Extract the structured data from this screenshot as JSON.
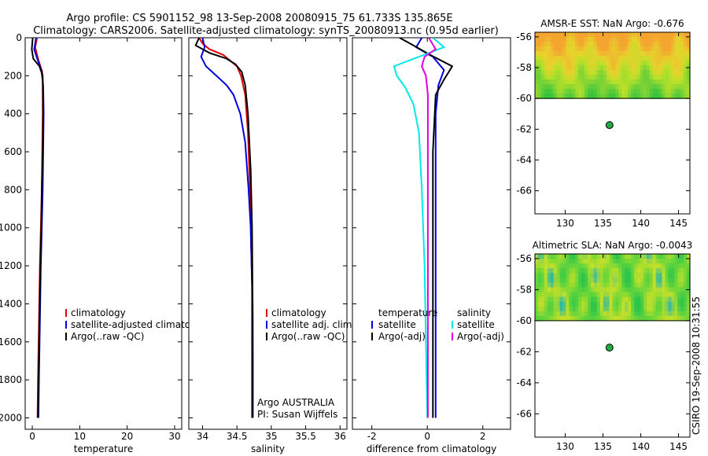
{
  "header": {
    "line1": "Argo profile: CS 5901152_98 13-Sep-2008 20080915_75 61.733S 135.865E",
    "line2": "Climatology: CARS2006. Satellite-adjusted climatology: synTS_20080913.nc (0.95d earlier)"
  },
  "side_stamp": "CSIRO 19-Sep-2008 10:31:55",
  "colors": {
    "climatology": "#e00000",
    "satellite": "#0000dd",
    "argo": "#000000",
    "sal_satellite": "#00e8e8",
    "sal_argo": "#e000e0",
    "sat_map_land_mask": "#ffffff",
    "map_marker": "#22aa44"
  },
  "chart_data": [
    {
      "id": "temperature",
      "type": "line",
      "xlabel": "temperature",
      "ylabel": "",
      "xlim": [
        -1.5,
        31.5
      ],
      "ylim": [
        0,
        2060
      ],
      "y_inverted": true,
      "xticks": [
        "0",
        "10",
        "20",
        "30"
      ],
      "xtick_values": [
        0,
        10,
        20,
        30
      ],
      "yticks": [
        "0",
        "200",
        "400",
        "600",
        "800",
        "1000",
        "1200",
        "1400",
        "1600",
        "1800",
        "2000"
      ],
      "ytick_values": [
        0,
        200,
        400,
        600,
        800,
        1000,
        1200,
        1400,
        1600,
        1800,
        2000
      ],
      "legend": [
        "climatology",
        "satellite-adjusted climatology",
        "Argo(..raw -QC)"
      ],
      "series": [
        {
          "name": "climatology",
          "color": "#e00000",
          "x": [
            1.0,
            0.6,
            1.2,
            2.1,
            2.2,
            2.2,
            2.1,
            2.0,
            1.8,
            1.6,
            1.4,
            1.2,
            1.1
          ],
          "y": [
            0,
            50,
            110,
            180,
            250,
            400,
            600,
            800,
            1000,
            1200,
            1500,
            1800,
            2000
          ]
        },
        {
          "name": "satellite-adjusted climatology",
          "color": "#0000dd",
          "x": [
            0.8,
            0.4,
            0.9,
            1.9,
            2.3,
            2.4,
            2.3,
            2.2,
            2.0,
            1.8,
            1.6,
            1.4,
            1.3
          ],
          "y": [
            0,
            60,
            100,
            170,
            250,
            400,
            600,
            800,
            1000,
            1200,
            1500,
            1800,
            2000
          ]
        },
        {
          "name": "Argo(..raw -QC)",
          "color": "#000000",
          "x": [
            0.1,
            -0.1,
            0.2,
            1.5,
            2.2,
            2.3,
            2.2,
            2.0,
            1.9,
            1.7,
            1.5,
            1.3,
            1.2
          ],
          "y": [
            0,
            60,
            110,
            150,
            200,
            400,
            600,
            800,
            1000,
            1200,
            1500,
            1800,
            2000
          ]
        }
      ]
    },
    {
      "id": "salinity",
      "type": "line",
      "xlabel": "salinity",
      "ylabel": "",
      "xlim": [
        33.8,
        36.1
      ],
      "ylim": [
        0,
        2060
      ],
      "y_inverted": true,
      "xticks": [
        "34",
        "34.5",
        "35",
        "35.5",
        "36"
      ],
      "xtick_values": [
        34,
        34.5,
        35,
        35.5,
        36
      ],
      "legend": [
        "climatology",
        "satellite adj. clim.",
        "Argo(..raw -QC)"
      ],
      "annotations": [
        "Argo AUSTRALIA",
        "PI: Susan Wijffels"
      ],
      "series": [
        {
          "name": "climatology",
          "color": "#e00000",
          "x": [
            33.95,
            34.0,
            34.1,
            34.3,
            34.4,
            34.5,
            34.56,
            34.62,
            34.66,
            34.69,
            34.7,
            34.72,
            34.73,
            34.73
          ],
          "y": [
            0,
            30,
            60,
            90,
            120,
            150,
            200,
            300,
            500,
            800,
            1000,
            1300,
            1700,
            2000
          ]
        },
        {
          "name": "satellite adj. clim.",
          "color": "#0000dd",
          "x": [
            34.0,
            34.03,
            33.98,
            34.05,
            34.2,
            34.35,
            34.45,
            34.55,
            34.62,
            34.67,
            34.7,
            34.72,
            34.72,
            34.72
          ],
          "y": [
            0,
            50,
            100,
            150,
            200,
            250,
            300,
            400,
            550,
            800,
            1000,
            1300,
            1700,
            2000
          ]
        },
        {
          "name": "Argo(..raw -QC)",
          "color": "#000000",
          "x": [
            33.95,
            33.9,
            34.1,
            34.35,
            34.48,
            34.57,
            34.62,
            34.66,
            34.7,
            34.72,
            34.73,
            34.73
          ],
          "y": [
            0,
            40,
            80,
            110,
            140,
            180,
            250,
            400,
            700,
            1000,
            1500,
            2000
          ]
        }
      ]
    },
    {
      "id": "difference",
      "type": "line",
      "xlabel": "difference from climatology",
      "ylabel": "",
      "xlim": [
        -2.7,
        3.0
      ],
      "ylim": [
        0,
        2060
      ],
      "y_inverted": true,
      "xticks": [
        "-2",
        "0",
        "2"
      ],
      "xtick_values": [
        -2,
        0,
        2
      ],
      "legend_groups": [
        {
          "title": "temperature",
          "items": [
            "satellite",
            "Argo(-adj)"
          ]
        },
        {
          "title": "salinity",
          "items": [
            "satellite",
            "Argo(-adj)"
          ]
        }
      ],
      "series": [
        {
          "name": "temperature satellite",
          "color": "#0000dd",
          "x": [
            -0.2,
            -0.4,
            0.2,
            0.6,
            0.4,
            0.3,
            0.3,
            0.3,
            0.3,
            0.3
          ],
          "y": [
            0,
            50,
            100,
            170,
            250,
            400,
            800,
            1200,
            1600,
            2000
          ]
        },
        {
          "name": "temperature Argo(-adj)",
          "color": "#000000",
          "x": [
            -1.0,
            -0.5,
            0.1,
            0.9,
            0.6,
            0.3,
            0.2,
            0.2,
            0.2,
            0.2
          ],
          "y": [
            0,
            40,
            90,
            150,
            220,
            300,
            600,
            1000,
            1500,
            2000
          ]
        },
        {
          "name": "salinity satellite",
          "color": "#00e8e8",
          "x": [
            0.2,
            0.6,
            -0.3,
            -1.2,
            -1.1,
            -0.8,
            -0.5,
            -0.3,
            -0.2,
            -0.1,
            0.0
          ],
          "y": [
            0,
            50,
            100,
            150,
            200,
            260,
            350,
            500,
            800,
            1200,
            2000
          ]
        },
        {
          "name": "salinity Argo(-adj)",
          "color": "#e000e0",
          "x": [
            0.05,
            0.3,
            -0.1,
            -0.2,
            -0.05,
            0.02,
            0.02,
            0.02,
            0.02
          ],
          "y": [
            0,
            60,
            100,
            150,
            200,
            300,
            700,
            1300,
            2000
          ]
        }
      ]
    },
    {
      "id": "amsre_sst",
      "type": "heatmap",
      "title": "AMSR-E SST: NaN Argo: -0.676",
      "xlim": [
        126,
        146.5
      ],
      "ylim": [
        -67.5,
        -55.7
      ],
      "xticks": [
        "130",
        "135",
        "140",
        "145"
      ],
      "xtick_values": [
        130,
        135,
        140,
        145
      ],
      "yticks": [
        "-56",
        "-58",
        "-60",
        "-62",
        "-64",
        "-66"
      ],
      "ytick_values": [
        -56,
        -58,
        -60,
        -62,
        -64,
        -66
      ],
      "data_extent_lat": [
        -60,
        -55.7
      ],
      "marker": {
        "lon": 135.865,
        "lat": -61.733
      },
      "field_description_colors": [
        "#f4a530",
        "#e8d22c",
        "#b8e02a",
        "#6ccf38",
        "#38c43c"
      ]
    },
    {
      "id": "altimetric_sla",
      "type": "heatmap",
      "title": "Altimetric SLA: NaN Argo: -0.0043",
      "xlim": [
        126,
        146.5
      ],
      "ylim": [
        -67.5,
        -55.7
      ],
      "xticks": [
        "130",
        "135",
        "140",
        "145"
      ],
      "xtick_values": [
        130,
        135,
        140,
        145
      ],
      "yticks": [
        "-56",
        "-58",
        "-60",
        "-62",
        "-64",
        "-66"
      ],
      "ytick_values": [
        -56,
        -58,
        -60,
        -62,
        -64,
        -66
      ],
      "data_extent_lat": [
        -60,
        -55.7
      ],
      "marker": {
        "lon": 135.865,
        "lat": -61.733
      },
      "field_description_colors": [
        "#2ec44a",
        "#6ad63a",
        "#c4e028",
        "#28b8a0"
      ]
    }
  ]
}
